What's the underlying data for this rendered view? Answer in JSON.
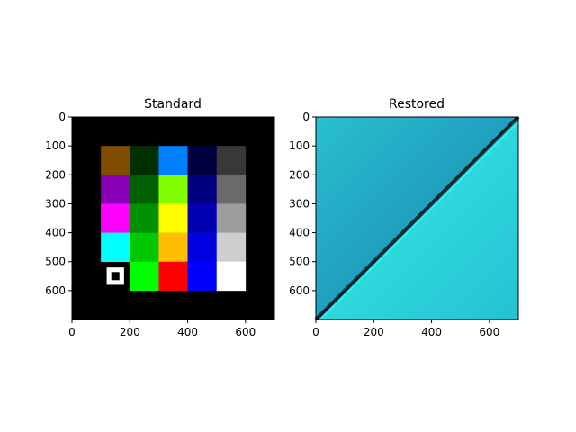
{
  "chart_data": [
    {
      "type": "heatmap",
      "title": "Standard",
      "xlim": [
        0,
        700
      ],
      "ylim": [
        700,
        0
      ],
      "x_ticks": [
        0,
        200,
        400,
        600
      ],
      "y_ticks": [
        0,
        100,
        200,
        300,
        400,
        500,
        600
      ],
      "x_tick_labels": [
        "0",
        "200",
        "400",
        "600"
      ],
      "y_tick_labels": [
        "0",
        "100",
        "200",
        "300",
        "400",
        "500",
        "600"
      ],
      "background_color": "#000000",
      "grid_origin": [
        100,
        100
      ],
      "cell_size": 100,
      "cells": [
        [
          "#804c00",
          "#003000",
          "#0080ff",
          "#000040",
          "#383838"
        ],
        [
          "#8800b8",
          "#006000",
          "#80ff00",
          "#000080",
          "#6a6a6a"
        ],
        [
          "#ff00ff",
          "#009000",
          "#ffff00",
          "#0000b0",
          "#9c9c9c"
        ],
        [
          "#00ffff",
          "#00c800",
          "#ffbf00",
          "#0000e0",
          "#cecece"
        ],
        [
          null,
          "#00ff00",
          "#ff0000",
          "#0000ff",
          "#ffffff"
        ]
      ],
      "marker": {
        "shape": "hollow-square",
        "x": 150,
        "y": 550,
        "color": "#ffffff"
      }
    },
    {
      "type": "heatmap",
      "title": "Restored",
      "xlim": [
        0,
        700
      ],
      "ylim": [
        700,
        0
      ],
      "x_ticks": [
        0,
        200,
        400,
        600
      ],
      "y_ticks": [
        0,
        100,
        200,
        300,
        400,
        500,
        600
      ],
      "x_tick_labels": [
        "0",
        "200",
        "400",
        "600"
      ],
      "y_tick_labels": [
        "0",
        "100",
        "200",
        "300",
        "400",
        "500",
        "600"
      ],
      "upper_region_color": "#26b8cc",
      "lower_region_color": "#2ed8de",
      "diagonal_from": [
        0,
        700
      ],
      "diagonal_to": [
        700,
        0
      ],
      "diagonal_color": "#0d1f24"
    }
  ]
}
